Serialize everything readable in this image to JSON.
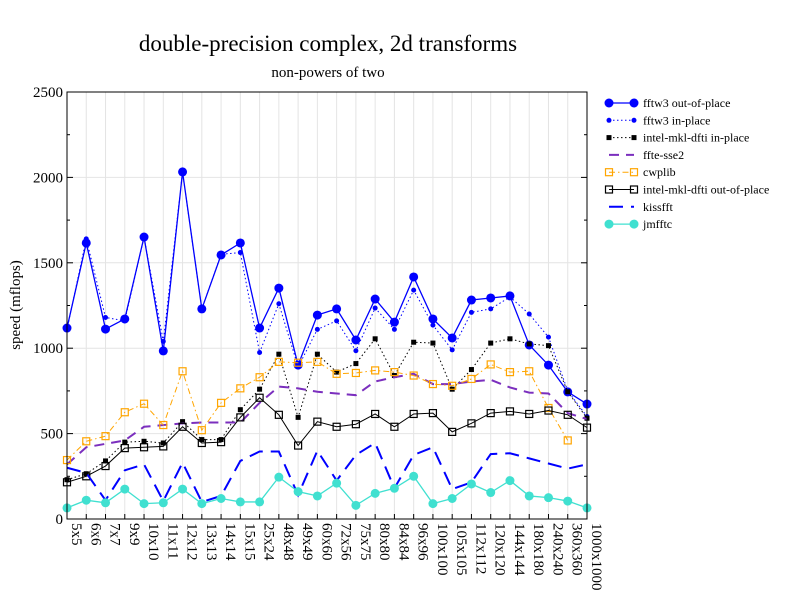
{
  "chart_data": {
    "type": "line",
    "title": "double-precision complex, 2d transforms",
    "subtitle": "non-powers of two",
    "xlabel": "",
    "ylabel": "speed (mflops)",
    "ylim": [
      0,
      2500
    ],
    "yticks": [
      0,
      500,
      1000,
      1500,
      2000,
      2500
    ],
    "grid": true,
    "legend_position": "right",
    "categories": [
      "5x5",
      "6x6",
      "7x7",
      "9x9",
      "10x10",
      "11x11",
      "12x12",
      "13x13",
      "14x14",
      "15x15",
      "25x24",
      "48x48",
      "49x49",
      "60x60",
      "72x56",
      "75x75",
      "80x80",
      "84x84",
      "96x96",
      "100x100",
      "105x105",
      "112x112",
      "120x120",
      "144x144",
      "180x180",
      "240x240",
      "360x360",
      "1000x1000"
    ],
    "series": [
      {
        "name": "fftw3 out-of-place",
        "color": "#0000ff",
        "style": "solid-circle",
        "values": [
          1118,
          1616,
          1112,
          1171,
          1651,
          984,
          2032,
          1230,
          1546,
          1616,
          1118,
          1352,
          901,
          1194,
          1230,
          1048,
          1288,
          1153,
          1417,
          1171,
          1060,
          1282,
          1294,
          1306,
          1019,
          901,
          744,
          673
        ]
      },
      {
        "name": "fftw3 in-place",
        "color": "#0000ff",
        "style": "dotted-dot",
        "values": [
          1110,
          1640,
          1180,
          1160,
          1650,
          1040,
          2030,
          1230,
          1550,
          1560,
          975,
          1260,
          890,
          1110,
          1160,
          985,
          1235,
          1110,
          1340,
          1135,
          990,
          1210,
          1230,
          1300,
          1200,
          1065,
          750,
          600
        ]
      },
      {
        "name": "intel-mkl-dfti in-place",
        "color": "#000000",
        "style": "dotted-square",
        "values": [
          230,
          265,
          340,
          450,
          455,
          445,
          570,
          465,
          465,
          640,
          760,
          965,
          595,
          965,
          860,
          910,
          1055,
          840,
          1035,
          1030,
          760,
          875,
          1030,
          1055,
          1025,
          1015,
          745,
          590
        ]
      },
      {
        "name": "ffte-sse2",
        "color": "#7b2fbe",
        "style": "dashed",
        "values": [
          320,
          420,
          440,
          460,
          540,
          550,
          560,
          565,
          565,
          565,
          680,
          775,
          765,
          745,
          735,
          725,
          805,
          830,
          850,
          790,
          790,
          805,
          815,
          770,
          740,
          735,
          620,
          585
        ]
      },
      {
        "name": "cwplib",
        "color": "#ffa500",
        "style": "dashdot-opensquare",
        "values": [
          345,
          455,
          485,
          625,
          675,
          550,
          865,
          520,
          680,
          765,
          830,
          920,
          915,
          920,
          850,
          855,
          870,
          860,
          840,
          790,
          780,
          820,
          905,
          860,
          865,
          650,
          460,
          null
        ]
      },
      {
        "name": "intel-mkl-dfti out-of-place",
        "color": "#000000",
        "style": "solid-opensquare",
        "values": [
          215,
          250,
          310,
          415,
          420,
          425,
          540,
          445,
          450,
          595,
          710,
          610,
          430,
          570,
          540,
          555,
          615,
          540,
          615,
          620,
          510,
          560,
          620,
          630,
          615,
          635,
          610,
          535
        ]
      },
      {
        "name": "kissfft",
        "color": "#0000ff",
        "style": "longdash",
        "values": [
          300,
          270,
          110,
          285,
          320,
          105,
          330,
          100,
          135,
          340,
          395,
          395,
          140,
          400,
          225,
          375,
          445,
          180,
          375,
          420,
          175,
          215,
          380,
          385,
          355,
          325,
          295,
          320
        ]
      },
      {
        "name": "jmfftc",
        "color": "#40e0d0",
        "style": "solid-circle",
        "values": [
          65,
          110,
          95,
          175,
          90,
          95,
          175,
          90,
          120,
          100,
          100,
          245,
          160,
          135,
          210,
          80,
          150,
          180,
          250,
          90,
          120,
          205,
          155,
          225,
          135,
          125,
          105,
          65
        ]
      }
    ]
  }
}
